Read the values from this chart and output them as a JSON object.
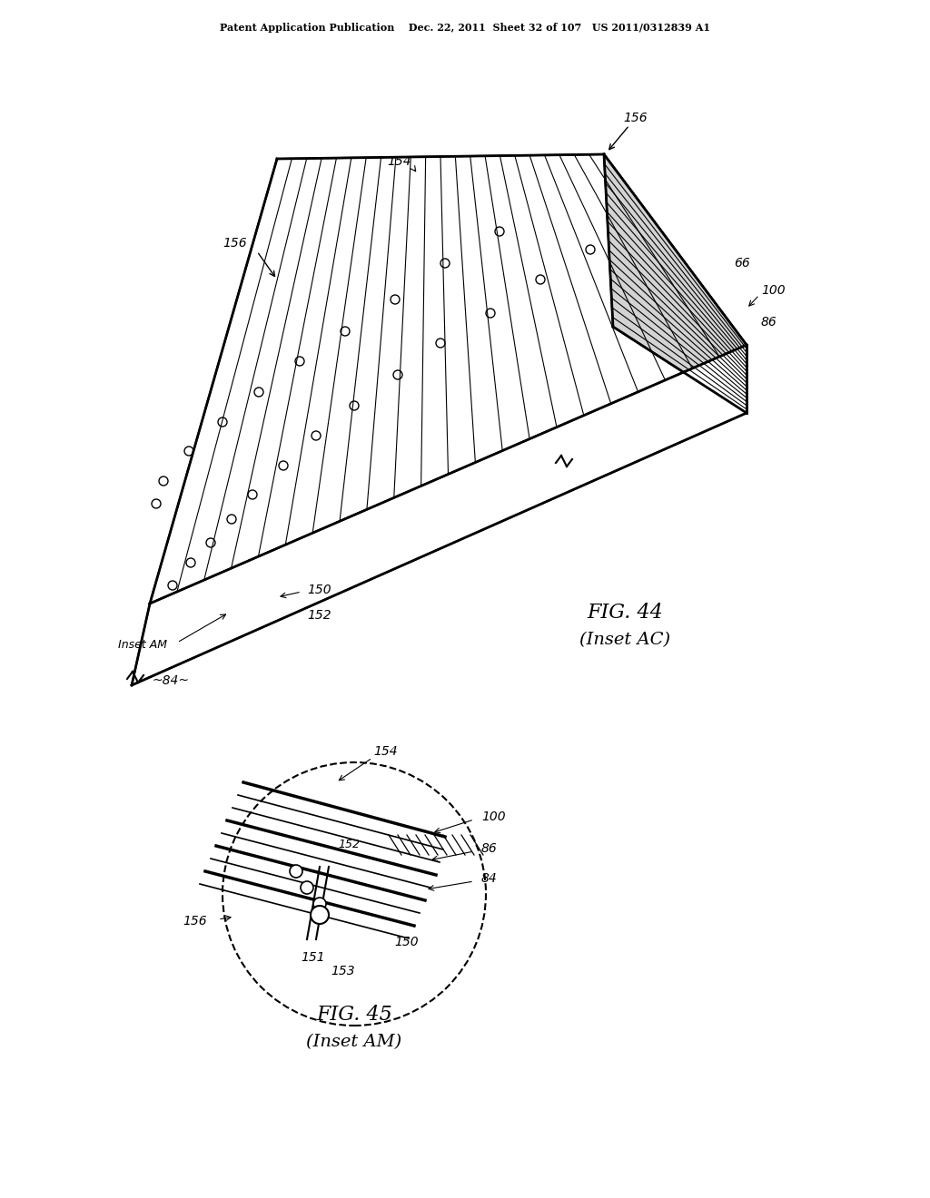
{
  "bg_color": "#ffffff",
  "header_text": "Patent Application Publication    Dec. 22, 2011  Sheet 32 of 107   US 2011/0312839 A1",
  "fig44_title": "FIG. 44",
  "fig44_subtitle": "(Inset AC)",
  "fig45_title": "FIG. 45",
  "fig45_subtitle": "(Inset AM)",
  "line_color": "#000000",
  "hatch_color": "#333333"
}
